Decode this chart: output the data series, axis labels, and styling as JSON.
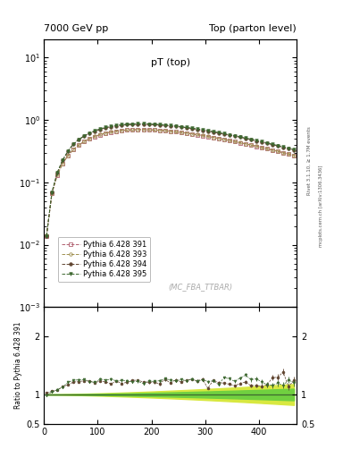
{
  "title_left": "7000 GeV pp",
  "title_right": "Top (parton level)",
  "plot_title": "pT (top)",
  "watermark": "(MC_FBA_TTBAR)",
  "right_label_1": "Rivet 3.1.10, ≥ 1.7M events",
  "right_label_2": "mcplots.cern.ch [arXiv:1306.3436]",
  "ylabel_ratio": "Ratio to Pythia 6.428 391",
  "xlim": [
    0,
    470
  ],
  "ylim_main": [
    0.001,
    20
  ],
  "ylim_ratio": [
    0.5,
    2.5
  ],
  "yticks_ratio": [
    0.5,
    1.0,
    2.0
  ],
  "ytick_labels_ratio": [
    "0.5",
    "1",
    "2"
  ],
  "legend_entries": [
    "Pythia 6.428 391",
    "Pythia 6.428 393",
    "Pythia 6.428 394",
    "Pythia 6.428 395"
  ],
  "colors_391": "#b06070",
  "colors_393": "#a09050",
  "colors_394": "#604530",
  "colors_395": "#3d6830",
  "ratio_band_green": "#70d040",
  "ratio_band_yellow": "#d8e840",
  "ratio_line_color": "#3d6830",
  "bg_color": "#ffffff"
}
